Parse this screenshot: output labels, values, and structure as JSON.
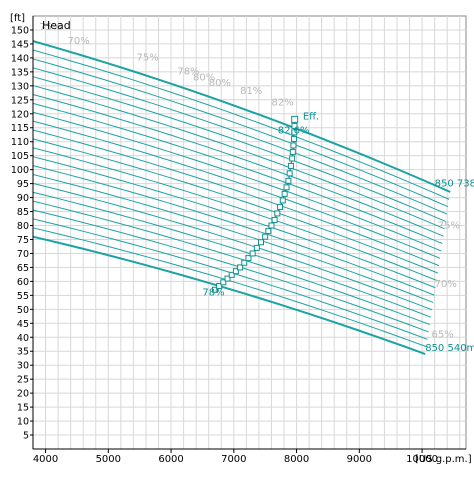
{
  "chart_data": {
    "type": "line",
    "title": "",
    "ylabel": "Head",
    "y_unit": "[ft]",
    "x_unit": "[US g.p.m.]",
    "xlim": [
      3800,
      10700
    ],
    "ylim": [
      0,
      155
    ],
    "x_ticks": [
      "4000",
      "5000",
      "6000",
      "7000",
      "8000",
      "9000",
      "10000"
    ],
    "y_ticks": [
      "5",
      "10",
      "15",
      "20",
      "25",
      "30",
      "35",
      "40",
      "45",
      "50",
      "55",
      "60",
      "65",
      "70",
      "75",
      "80",
      "85",
      "90",
      "95",
      "100",
      "105",
      "110",
      "115",
      "120",
      "125",
      "130",
      "135",
      "140",
      "145",
      "150"
    ],
    "grid": true,
    "impeller_curves": {
      "count": 23,
      "top": {
        "label": "850 738mm",
        "x_end": 10450,
        "y_start": 146,
        "y_end": 92
      },
      "bottom": {
        "label": "850 540mm",
        "x_end": 10050,
        "y_start": 76,
        "y_end": 34
      }
    },
    "efficiency_curve": {
      "label": "Eff.",
      "points": [
        {
          "x": 6700,
          "y": 57
        },
        {
          "x": 6900,
          "y": 61
        },
        {
          "x": 7100,
          "y": 65
        },
        {
          "x": 7300,
          "y": 70
        },
        {
          "x": 7500,
          "y": 76
        },
        {
          "x": 7650,
          "y": 82
        },
        {
          "x": 7780,
          "y": 89
        },
        {
          "x": 7870,
          "y": 96
        },
        {
          "x": 7930,
          "y": 104
        },
        {
          "x": 7960,
          "y": 111
        },
        {
          "x": 7970,
          "y": 118
        }
      ]
    },
    "annotations": [
      {
        "text": "75%",
        "x": 3900,
        "y": 150
      },
      {
        "text": "70%",
        "x": 4350,
        "y": 145
      },
      {
        "text": "75%",
        "x": 5450,
        "y": 139
      },
      {
        "text": "78%",
        "x": 6100,
        "y": 134
      },
      {
        "text": "80%",
        "x": 6350,
        "y": 132
      },
      {
        "text": "80%",
        "x": 6600,
        "y": 130
      },
      {
        "text": "81%",
        "x": 7100,
        "y": 127
      },
      {
        "text": "82%",
        "x": 7600,
        "y": 123
      },
      {
        "text": "82.6%",
        "x": 7700,
        "y": 113
      },
      {
        "text": "Eff.",
        "x": 8100,
        "y": 118
      },
      {
        "text": "850 738mm",
        "x": 10200,
        "y": 94
      },
      {
        "text": "75%",
        "x": 10250,
        "y": 79
      },
      {
        "text": "70%",
        "x": 10200,
        "y": 58
      },
      {
        "text": "65%",
        "x": 10150,
        "y": 40
      },
      {
        "text": "850 540mm",
        "x": 10050,
        "y": 35
      },
      {
        "text": "78%",
        "x": 6500,
        "y": 55
      }
    ],
    "colors": {
      "curve": "#1aa3a3",
      "efficiency": "#108f8f",
      "grid": "#d8d8d8",
      "label_gray": "#b8b8b8",
      "axis": "#000000"
    }
  }
}
